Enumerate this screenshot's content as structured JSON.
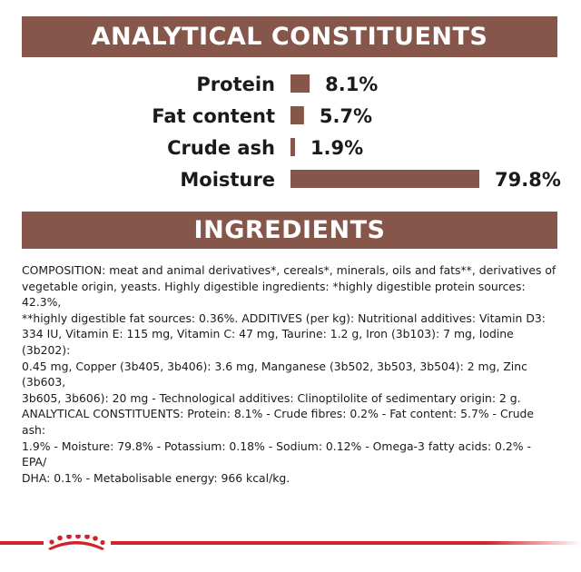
{
  "header": {
    "analytical_title": "ANALYTICAL CONSTITUENTS",
    "ingredients_title": "INGREDIENTS"
  },
  "colors": {
    "banner": "#86564a",
    "bar": "#86564a",
    "brand_red": "#d2232a"
  },
  "chart_data": {
    "type": "bar",
    "orientation": "horizontal",
    "categories": [
      "Protein",
      "Fat content",
      "Crude ash",
      "Moisture"
    ],
    "values": [
      8.1,
      5.7,
      1.9,
      79.8
    ],
    "value_labels": [
      "8.1%",
      "5.7%",
      "1.9%",
      "79.8%"
    ],
    "unit": "%",
    "xlim": [
      0,
      79.8
    ],
    "grid": false,
    "legend": "none"
  },
  "ingredients": {
    "text": "COMPOSITION: meat and animal derivatives*, cereals*, minerals, oils and fats**, derivatives of\nvegetable origin, yeasts. Highly digestible ingredients: *highly digestible protein sources: 42.3%,\n**highly digestible fat sources: 0.36%. ADDITIVES (per kg): Nutritional additives: Vitamin D3:\n334 IU, Vitamin E: 115 mg, Vitamin C: 47 mg, Taurine: 1.2 g, Iron (3b103): 7 mg, Iodine (3b202):\n0.45 mg, Copper (3b405, 3b406): 3.6 mg, Manganese (3b502, 3b503, 3b504): 2 mg, Zinc (3b603,\n3b605, 3b606): 20 mg - Technological additives: Clinoptilolite of sedimentary origin: 2 g.\nANALYTICAL CONSTITUENTS: Protein: 8.1% - Crude fibres: 0.2% - Fat content: 5.7% - Crude ash:\n1.9% - Moisture: 79.8% - Potassium: 0.18% - Sodium: 0.12% - Omega-3 fatty acids: 0.2% - EPA/\nDHA: 0.1% - Metabolisable energy: 966 kcal/kg."
  },
  "footer": {
    "logo_icon": "royal-canin-crown-icon"
  }
}
